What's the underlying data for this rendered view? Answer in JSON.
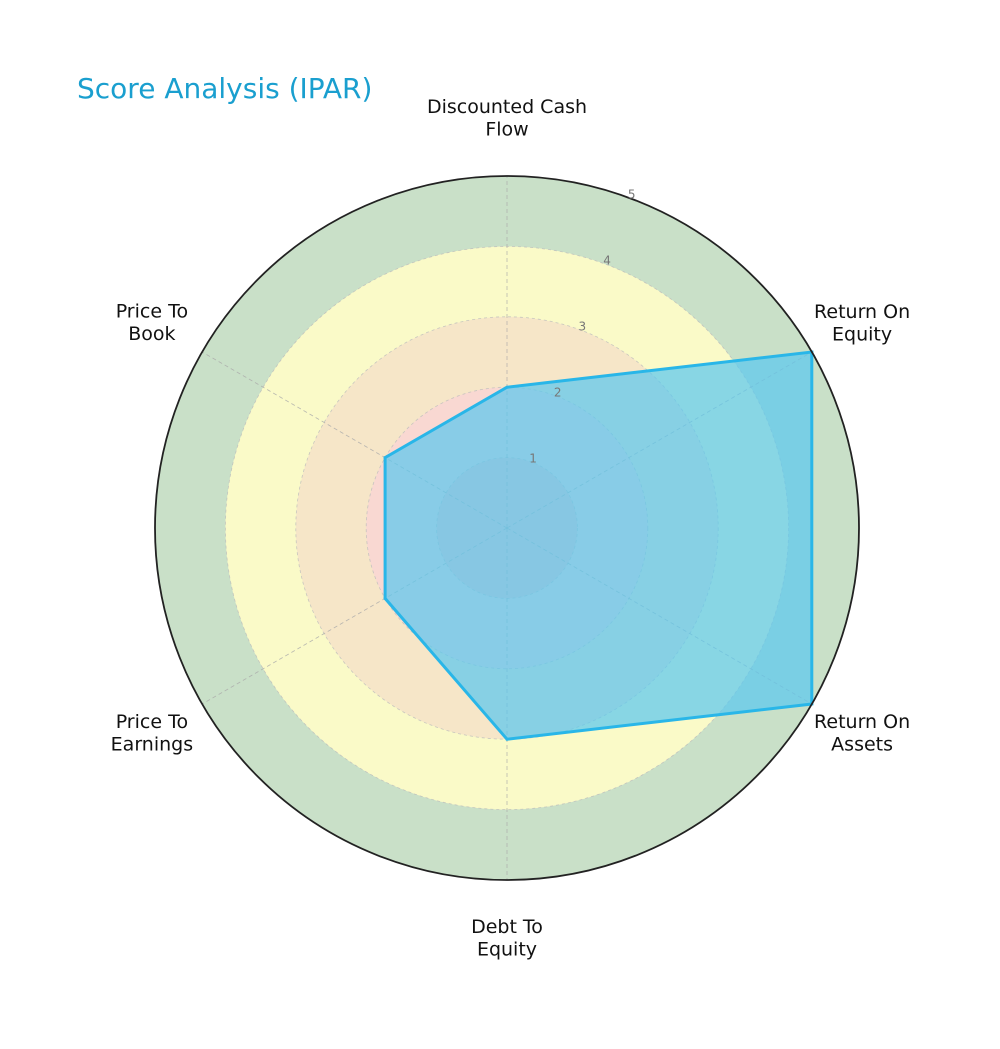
{
  "chart_data": {
    "type": "radar",
    "title": "Score Analysis (IPAR)",
    "categories": [
      "Discounted Cash\nFlow",
      "Return On\nEquity",
      "Return On\nAssets",
      "Debt To\nEquity",
      "Price To\nEarnings",
      "Price To\nBook"
    ],
    "series": [
      {
        "values": [
          2,
          5,
          5,
          3,
          2,
          2
        ]
      }
    ],
    "rlim": [
      0,
      5
    ],
    "rticks": [
      1,
      2,
      3,
      4,
      5
    ],
    "grid": true,
    "bands": [
      {
        "from": 0,
        "to": 1,
        "color": "#f6c6c6"
      },
      {
        "from": 1,
        "to": 2,
        "color": "#f9d8d2"
      },
      {
        "from": 2,
        "to": 3,
        "color": "#f6e6c8"
      },
      {
        "from": 3,
        "to": 4,
        "color": "#fafac8"
      },
      {
        "from": 4,
        "to": 5,
        "color": "#c9e0c8"
      }
    ],
    "series_color": "#29b6e8",
    "series_fill": "#5bc8ee",
    "title_color": "#1a9fcf"
  }
}
